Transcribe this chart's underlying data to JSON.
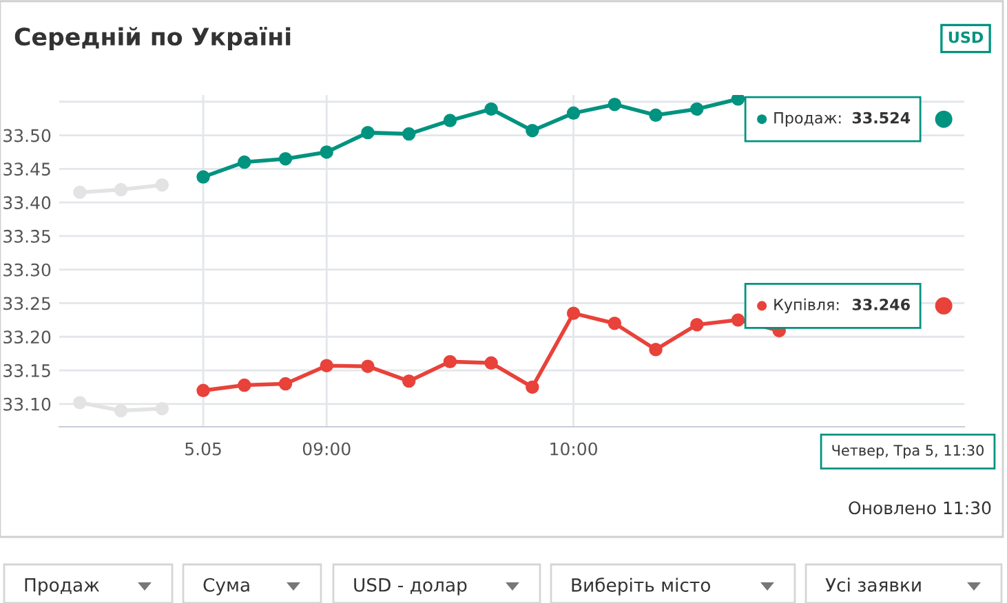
{
  "chart_data": {
    "type": "line",
    "title": "Середній по Україні",
    "categories": [
      null,
      null,
      null,
      "5.05",
      null,
      null,
      "09:00",
      null,
      null,
      null,
      null,
      null,
      "10:00",
      null,
      null,
      null,
      null,
      null,
      null,
      null,
      null,
      null
    ],
    "series": [
      {
        "color": "#e3e3e3",
        "values": [
          33.415,
          33.419,
          33.426,
          null,
          null,
          null,
          null,
          null,
          null,
          null,
          null,
          null,
          null,
          null,
          null,
          null,
          null,
          null,
          null,
          null,
          null,
          null
        ]
      },
      {
        "color": "#e3e3e3",
        "values": [
          33.102,
          33.09,
          33.093,
          null,
          null,
          null,
          null,
          null,
          null,
          null,
          null,
          null,
          null,
          null,
          null,
          null,
          null,
          null,
          null,
          null,
          null,
          null
        ]
      },
      {
        "name": "Продаж:",
        "color": "#009380",
        "values": [
          null,
          null,
          null,
          33.438,
          33.46,
          33.465,
          33.475,
          33.504,
          33.502,
          33.522,
          33.539,
          33.507,
          33.533,
          33.546,
          33.53,
          33.539,
          33.554,
          null,
          null,
          null,
          null,
          33.524
        ],
        "value_labels": [
          null,
          null,
          null,
          null,
          null,
          null,
          null,
          null,
          null,
          null,
          null,
          null,
          null,
          null,
          null,
          null,
          null,
          null,
          null,
          null,
          null,
          "33.524"
        ]
      },
      {
        "name": "Купівля:",
        "color": "#e8423a",
        "values": [
          null,
          null,
          null,
          33.12,
          33.128,
          33.13,
          33.157,
          33.156,
          33.134,
          33.163,
          33.161,
          33.125,
          33.235,
          33.22,
          33.181,
          33.218,
          33.225,
          33.209,
          null,
          null,
          null,
          33.246
        ],
        "value_labels": [
          null,
          null,
          null,
          null,
          null,
          null,
          null,
          null,
          null,
          null,
          null,
          null,
          null,
          null,
          null,
          null,
          null,
          null,
          null,
          null,
          null,
          "33.246"
        ]
      }
    ],
    "ylim": [
      33.066,
      33.56
    ],
    "yticks": [
      {
        "value": 33.1,
        "label": "33.10"
      },
      {
        "value": 33.15,
        "label": "33.15"
      },
      {
        "value": 33.2,
        "label": "33.20"
      },
      {
        "value": 33.25,
        "label": "33.25"
      },
      {
        "value": 33.3,
        "label": "33.30"
      },
      {
        "value": 33.35,
        "label": "33.35"
      },
      {
        "value": 33.4,
        "label": "33.40"
      },
      {
        "value": 33.45,
        "label": "33.45"
      },
      {
        "value": 33.5,
        "label": "33.50"
      },
      {
        "value": 33.55,
        "label": null
      }
    ],
    "grid": true,
    "legend": "right",
    "marker": "circle",
    "line_style": "solid",
    "annotations": [
      "USD",
      "Четвер, Тра 5, 11:30",
      "Оновлено 11:30",
      "Продаж",
      "Сума",
      "USD - долар",
      "Виберіть місто",
      "Усі заявки"
    ]
  }
}
